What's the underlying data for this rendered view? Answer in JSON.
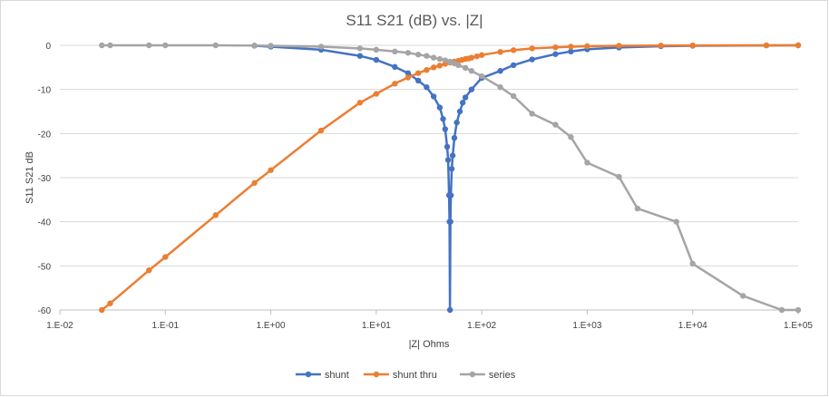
{
  "chart_data": {
    "type": "scatter",
    "title": "S11 S21 (dB) vs. |Z|",
    "xlabel": "|Z| Ohms",
    "ylabel": "S11 S21 dB",
    "x_scale": "log",
    "xlim": [
      0.01,
      100000
    ],
    "ylim": [
      -60,
      0
    ],
    "grid": "horizontal",
    "legend_position": "bottom",
    "x_tick_labels": [
      "1.E-02",
      "1.E-01",
      "1.E+00",
      "1.E+01",
      "1.E+02",
      "1.E+03",
      "1.E+04",
      "1.E+05"
    ],
    "y_tick_labels": [
      "0",
      "-10",
      "-20",
      "-30",
      "-40",
      "-50",
      "-60"
    ],
    "series": [
      {
        "name": "shunt",
        "color": "#4472C4",
        "x": [
          0.7,
          1,
          3,
          7,
          10,
          15,
          20,
          25,
          30,
          35,
          40,
          43,
          45,
          47,
          48,
          49,
          49.5,
          50,
          50.5,
          51,
          52,
          53,
          55,
          58,
          62,
          66,
          70,
          80,
          100,
          150,
          200,
          300,
          500,
          700,
          1000,
          2000,
          5000,
          10000,
          50000,
          100000
        ],
        "y": [
          -0.1,
          -0.3,
          -1.0,
          -2.4,
          -3.3,
          -4.9,
          -6.3,
          -8.0,
          -9.5,
          -11.6,
          -14.1,
          -16.7,
          -19.0,
          -23.0,
          -26.0,
          -34.0,
          -40.0,
          -60.0,
          -40.0,
          -34.0,
          -28.0,
          -25.0,
          -21.0,
          -17.5,
          -15.0,
          -13.0,
          -11.8,
          -10.0,
          -7.4,
          -5.8,
          -4.5,
          -3.2,
          -2.0,
          -1.4,
          -0.9,
          -0.5,
          -0.2,
          -0.1,
          -0.02,
          0.0
        ]
      },
      {
        "name": "shunt thru",
        "color": "#ED7D31",
        "x": [
          0.025,
          0.03,
          0.07,
          0.1,
          0.3,
          0.7,
          1,
          3,
          7,
          10,
          15,
          20,
          25,
          30,
          35,
          40,
          45,
          50,
          55,
          60,
          65,
          70,
          75,
          80,
          90,
          100,
          150,
          200,
          300,
          500,
          700,
          1000,
          2000,
          5000,
          10000,
          50000,
          100000
        ],
        "y": [
          -60,
          -58.5,
          -51,
          -48,
          -38.5,
          -31.2,
          -28.3,
          -19.3,
          -13.0,
          -11.0,
          -8.7,
          -7.3,
          -6.3,
          -5.6,
          -5.0,
          -4.6,
          -4.2,
          -3.9,
          -3.7,
          -3.5,
          -3.3,
          -3.1,
          -3.0,
          -2.8,
          -2.5,
          -2.2,
          -1.5,
          -1.1,
          -0.7,
          -0.45,
          -0.3,
          -0.2,
          -0.1,
          -0.05,
          -0.02,
          -0.01,
          0
        ]
      },
      {
        "name": "series",
        "color": "#A5A5A5",
        "x": [
          0.025,
          0.03,
          0.07,
          0.1,
          0.3,
          0.7,
          1,
          3,
          7,
          10,
          15,
          20,
          25,
          30,
          35,
          40,
          45,
          50,
          55,
          60,
          70,
          80,
          100,
          150,
          200,
          300,
          500,
          700,
          1000,
          2000,
          3000,
          7000,
          10000,
          30000,
          70000,
          100000
        ],
        "y": [
          0,
          0,
          0,
          0,
          0,
          -0.05,
          -0.1,
          -0.3,
          -0.7,
          -1.0,
          -1.4,
          -1.7,
          -2.1,
          -2.4,
          -2.8,
          -3.1,
          -3.4,
          -3.7,
          -4.1,
          -4.5,
          -5.1,
          -5.8,
          -7.0,
          -9.5,
          -11.5,
          -15.5,
          -18.0,
          -20.8,
          -26.6,
          -29.8,
          -37.0,
          -40.0,
          -49.5,
          -56.8,
          -60.0,
          -60.0
        ]
      }
    ]
  }
}
